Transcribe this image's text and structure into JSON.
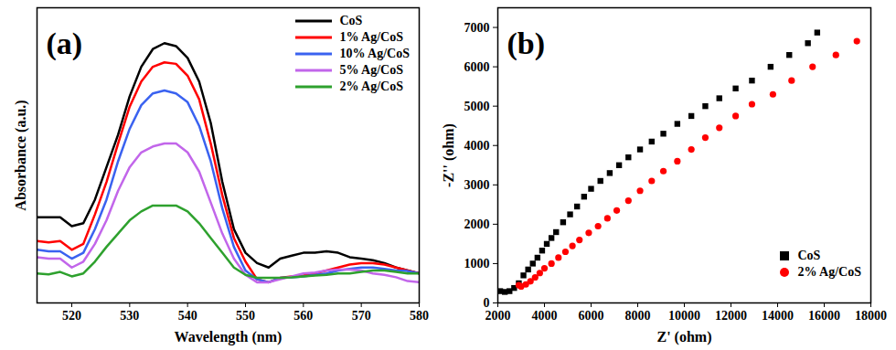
{
  "chart_data": [
    {
      "type": "line",
      "title": "(a)",
      "x_label": "Wavelength (nm)",
      "y_label": "Absorbance (a.u.)",
      "x": [
        514,
        516,
        518,
        520,
        522,
        524,
        526,
        528,
        530,
        532,
        534,
        536,
        538,
        540,
        542,
        544,
        546,
        548,
        550,
        552,
        554,
        556,
        558,
        560,
        562,
        564,
        566,
        568,
        570,
        572,
        574,
        576,
        578,
        580
      ],
      "series": [
        {
          "name": "CoS",
          "color": "#000000",
          "values": [
            0.29,
            0.29,
            0.29,
            0.26,
            0.27,
            0.35,
            0.46,
            0.57,
            0.7,
            0.8,
            0.86,
            0.88,
            0.87,
            0.83,
            0.75,
            0.61,
            0.41,
            0.25,
            0.17,
            0.135,
            0.12,
            0.15,
            0.16,
            0.17,
            0.17,
            0.175,
            0.17,
            0.155,
            0.15,
            0.145,
            0.135,
            0.12,
            0.11,
            0.1
          ]
        },
        {
          "name": "1% Ag/CoS",
          "color": "#ff0000",
          "values": [
            0.21,
            0.205,
            0.21,
            0.18,
            0.2,
            0.3,
            0.41,
            0.54,
            0.665,
            0.75,
            0.8,
            0.815,
            0.81,
            0.77,
            0.69,
            0.54,
            0.365,
            0.22,
            0.14,
            0.08,
            0.07,
            0.085,
            0.09,
            0.093,
            0.1,
            0.11,
            0.12,
            0.13,
            0.135,
            0.135,
            0.13,
            0.12,
            0.11,
            0.1
          ]
        },
        {
          "name": "10% Ag/CoS",
          "color": "#3a62f0",
          "values": [
            0.18,
            0.175,
            0.175,
            0.15,
            0.17,
            0.25,
            0.35,
            0.48,
            0.59,
            0.67,
            0.71,
            0.72,
            0.71,
            0.68,
            0.6,
            0.48,
            0.32,
            0.19,
            0.11,
            0.08,
            0.07,
            0.085,
            0.087,
            0.09,
            0.095,
            0.1,
            0.11,
            0.115,
            0.12,
            0.12,
            0.115,
            0.11,
            0.108,
            0.1
          ]
        },
        {
          "name": "5% Ag/CoS",
          "color": "#c266ea",
          "values": [
            0.155,
            0.15,
            0.15,
            0.12,
            0.14,
            0.2,
            0.28,
            0.38,
            0.46,
            0.51,
            0.53,
            0.54,
            0.54,
            0.51,
            0.445,
            0.34,
            0.235,
            0.15,
            0.095,
            0.07,
            0.07,
            0.08,
            0.09,
            0.1,
            0.103,
            0.11,
            0.113,
            0.113,
            0.11,
            0.1,
            0.095,
            0.087,
            0.074,
            0.07
          ]
        },
        {
          "name": "2% Ag/CoS",
          "color": "#2ea12e",
          "values": [
            0.1,
            0.097,
            0.105,
            0.09,
            0.1,
            0.14,
            0.19,
            0.235,
            0.28,
            0.31,
            0.33,
            0.33,
            0.33,
            0.31,
            0.27,
            0.22,
            0.17,
            0.12,
            0.095,
            0.085,
            0.085,
            0.085,
            0.087,
            0.09,
            0.093,
            0.095,
            0.1,
            0.1,
            0.105,
            0.11,
            0.11,
            0.105,
            0.1,
            0.1
          ]
        }
      ],
      "xlim": [
        514,
        580
      ],
      "xticks": [
        520,
        530,
        540,
        550,
        560,
        570,
        580
      ],
      "ylim": [
        0,
        1
      ],
      "yticks": [],
      "tick_labels": "x",
      "grid": false,
      "legend": "top-right",
      "line_style": "solid"
    },
    {
      "type": "scatter",
      "title": "(b)",
      "x_label": "Z' (ohm)",
      "y_label": "-Z'' (ohm)",
      "series": [
        {
          "name": "CoS",
          "color": "#000000",
          "marker": "square",
          "x": [
            2100,
            2300,
            2500,
            2700,
            2900,
            3100,
            3300,
            3500,
            3700,
            3900,
            4100,
            4300,
            4500,
            4800,
            5100,
            5400,
            5700,
            6000,
            6400,
            6800,
            7200,
            7600,
            8100,
            8600,
            9100,
            9700,
            10300,
            10900,
            11500,
            12200,
            12900,
            13700,
            14500,
            15300,
            15700
          ],
          "values": [
            300,
            280,
            300,
            380,
            500,
            700,
            850,
            1000,
            1150,
            1330,
            1500,
            1650,
            1800,
            2050,
            2250,
            2450,
            2700,
            2900,
            3100,
            3300,
            3500,
            3700,
            3900,
            4100,
            4300,
            4550,
            4750,
            5000,
            5200,
            5450,
            5650,
            6000,
            6300,
            6600,
            6870
          ]
        },
        {
          "name": "2% Ag/CoS",
          "color": "#ff0000",
          "marker": "circle",
          "x": [
            2900,
            3000,
            3200,
            3400,
            3600,
            3800,
            4000,
            4300,
            4600,
            4900,
            5200,
            5500,
            5900,
            6300,
            6700,
            7100,
            7600,
            8100,
            8600,
            9100,
            9700,
            10300,
            10900,
            11500,
            12200,
            12900,
            13800,
            14600,
            15500,
            16500,
            17400
          ],
          "values": [
            450,
            420,
            470,
            550,
            650,
            760,
            880,
            1000,
            1150,
            1300,
            1450,
            1600,
            1780,
            1950,
            2150,
            2350,
            2600,
            2850,
            3100,
            3350,
            3600,
            3900,
            4200,
            4450,
            4750,
            5050,
            5300,
            5650,
            6000,
            6300,
            6650
          ]
        }
      ],
      "xlim": [
        2000,
        18000
      ],
      "xticks": [
        2000,
        4000,
        6000,
        8000,
        10000,
        12000,
        14000,
        16000,
        18000
      ],
      "ylim": [
        0,
        7500
      ],
      "yticks": [
        0,
        1000,
        2000,
        3000,
        4000,
        5000,
        6000,
        7000
      ],
      "grid": false,
      "legend": "bottom-right"
    }
  ]
}
